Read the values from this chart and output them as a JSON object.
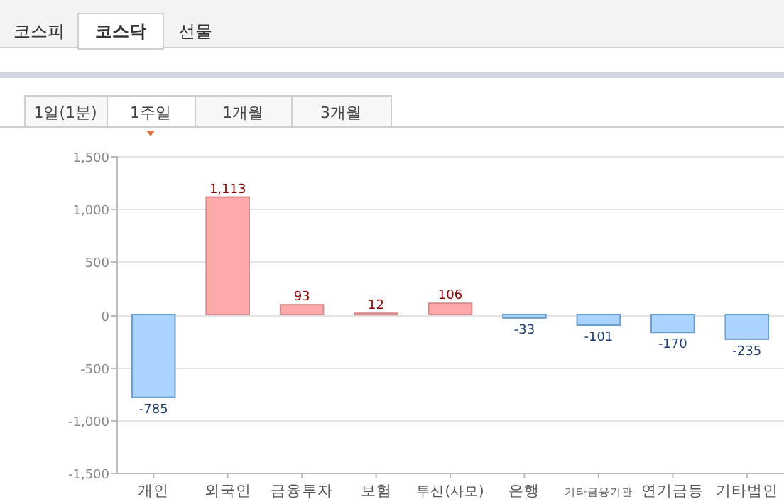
{
  "chart_data": {
    "type": "bar",
    "categories": [
      "개인",
      "외국인",
      "금융투자",
      "보험",
      "투신(사모)",
      "은행",
      "기타금융기관",
      "연기금등",
      "기타법인"
    ],
    "values": [
      -785,
      1113,
      93,
      12,
      106,
      -33,
      -101,
      -170,
      -235
    ],
    "colors": [
      "#aad4ff",
      "#ffaaaa",
      "#ffaaaa",
      "#ffaaaa",
      "#ffaaaa",
      "#aad4ff",
      "#aad4ff",
      "#aad4ff",
      "#aad4ff"
    ],
    "value_labels": [
      "-785",
      "1,113",
      "93",
      "12",
      "106",
      "-33",
      "-101",
      "-170",
      "-235"
    ],
    "ylim": [
      -1500,
      1500
    ],
    "yticks": [
      {
        "value": -1500,
        "label": "-1,500"
      },
      {
        "value": -1000,
        "label": "-1,000"
      },
      {
        "value": -500,
        "label": "-500"
      },
      0,
      500,
      {
        "value": 1000,
        "label": "1,000"
      },
      {
        "value": 1500,
        "label": "1,500"
      }
    ],
    "grid": "y",
    "annotations": [
      "코스피",
      "코스닥",
      "선물",
      "1일(1분)",
      "1주일",
      "1개월",
      "3개월"
    ]
  }
}
